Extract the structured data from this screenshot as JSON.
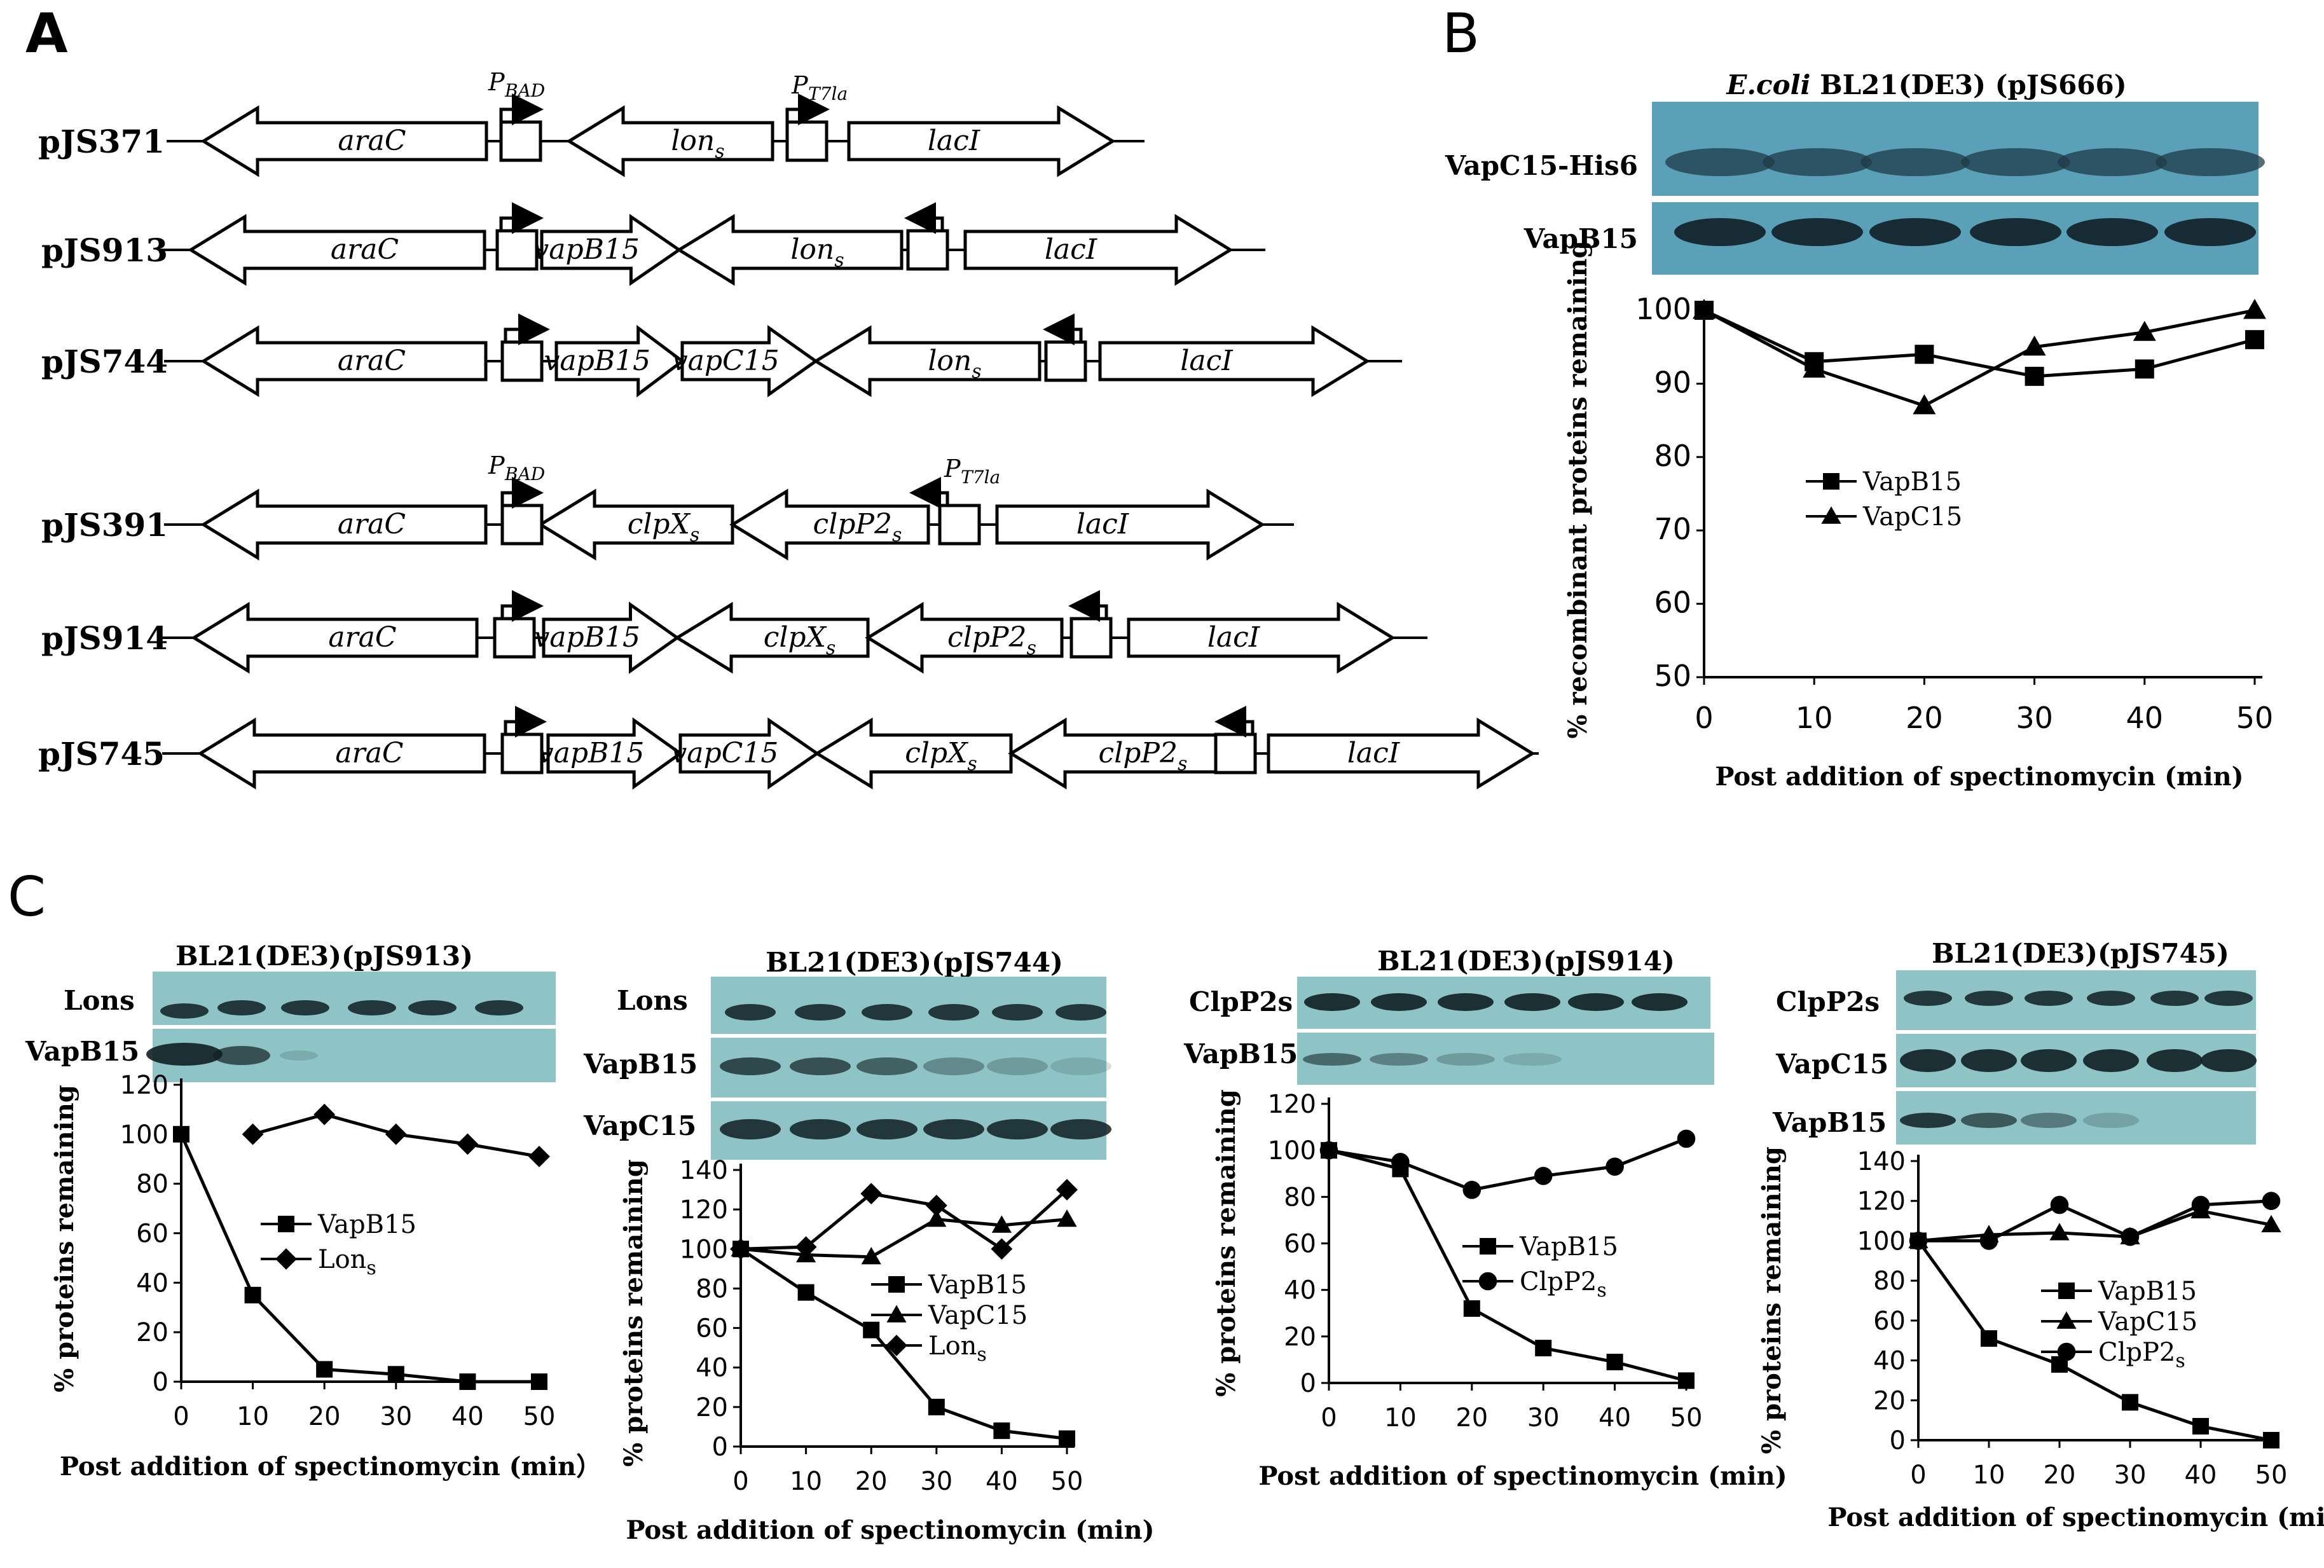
{
  "panels": {
    "a": {
      "label": "A",
      "promoter_pbad": "P",
      "promoter_pbad_sub": "BAD",
      "promoter_pt7": "P",
      "promoter_pt7_sub": "T7la",
      "plasmids": [
        {
          "name": "pJS371",
          "genes": [
            "araC",
            "lon",
            "lacI"
          ]
        },
        {
          "name": "pJS913",
          "genes": [
            "araC",
            "vapB15",
            "lon",
            "lacI"
          ]
        },
        {
          "name": "pJS744",
          "genes": [
            "araC",
            "vapB15",
            "vapC15",
            "lon",
            "lacI"
          ]
        },
        {
          "name": "pJS391",
          "genes": [
            "araC",
            "clpX",
            "clpP2",
            "lacI"
          ]
        },
        {
          "name": "pJS914",
          "genes": [
            "araC",
            "vapB15",
            "clpX",
            "clpP2",
            "lacI"
          ]
        },
        {
          "name": "pJS745",
          "genes": [
            "araC",
            "vapB15",
            "vapC15",
            "clpX",
            "clpP2",
            "lacI"
          ]
        }
      ],
      "subscript_s": "s"
    },
    "b": {
      "label": "B",
      "blot_title_italic": "E.coli",
      "blot_title_rest": " BL21(DE3) (pJS666)",
      "bands": [
        "VapC15-His6",
        "VapB15"
      ]
    },
    "c": {
      "label": "C",
      "blots": [
        {
          "title": "BL21(DE3)(pJS913)",
          "bands": [
            "Lons",
            "VapB15"
          ]
        },
        {
          "title": "BL21(DE3)(pJS744)",
          "bands": [
            "Lons",
            "VapB15",
            "VapC15"
          ]
        },
        {
          "title": "BL21(DE3)(pJS914)",
          "bands": [
            "ClpP2s",
            "VapB15"
          ]
        },
        {
          "title": "BL21(DE3)(pJS745)",
          "bands": [
            "ClpP2s",
            "VapC15",
            "VapB15"
          ]
        }
      ]
    }
  },
  "chart_data": [
    {
      "id": "B",
      "type": "line",
      "x": [
        0,
        10,
        20,
        30,
        40,
        50
      ],
      "series": [
        {
          "name": "VapB15",
          "marker": "square",
          "values": [
            100,
            93,
            94,
            91,
            92,
            96
          ]
        },
        {
          "name": "VapC15",
          "marker": "triangle",
          "values": [
            100,
            92,
            87,
            95,
            97,
            100
          ]
        }
      ],
      "ylim": [
        50,
        100
      ],
      "yticks": [
        50,
        60,
        70,
        80,
        90,
        100
      ],
      "xlabel": "Post addition of spectinomycin (min)",
      "ylabel": "% recombinant proteins remaining"
    },
    {
      "id": "C1",
      "type": "line",
      "x": [
        0,
        10,
        20,
        30,
        40,
        50
      ],
      "series": [
        {
          "name": "VapB15",
          "marker": "square",
          "values": [
            100,
            35,
            5,
            3,
            0,
            0
          ]
        },
        {
          "name": "Lon",
          "name_sub": "s",
          "marker": "diamond",
          "x": [
            10,
            20,
            30,
            40,
            50
          ],
          "values": [
            100,
            108,
            100,
            96,
            91
          ]
        }
      ],
      "ylim": [
        0,
        120
      ],
      "yticks": [
        0,
        20,
        40,
        60,
        80,
        100,
        120
      ],
      "xlabel": "Post addition of spectinomycin  (min）",
      "ylabel": "% proteins remaining"
    },
    {
      "id": "C2",
      "type": "line",
      "x": [
        0,
        10,
        20,
        30,
        40,
        50
      ],
      "series": [
        {
          "name": "VapB15",
          "marker": "square",
          "values": [
            100,
            78,
            59,
            20,
            8,
            4
          ]
        },
        {
          "name": "VapC15",
          "marker": "triangle",
          "values": [
            100,
            97,
            96,
            115,
            112,
            115
          ]
        },
        {
          "name": "Lon",
          "name_sub": "s",
          "marker": "diamond",
          "values": [
            100,
            101,
            128,
            122,
            100,
            130
          ]
        }
      ],
      "ylim": [
        0,
        140
      ],
      "yticks": [
        0,
        20,
        40,
        60,
        80,
        100,
        120,
        140
      ],
      "xlabel": "Post addition of  spectinomycin (min)",
      "ylabel": "%  proteins remaining"
    },
    {
      "id": "C3",
      "type": "line",
      "x": [
        0,
        10,
        20,
        30,
        40,
        50
      ],
      "series": [
        {
          "name": "VapB15",
          "marker": "square",
          "values": [
            100,
            92,
            32,
            15,
            9,
            1
          ]
        },
        {
          "name": "ClpP2",
          "name_sub": "s",
          "marker": "circle",
          "values": [
            100,
            95,
            83,
            89,
            93,
            105
          ]
        }
      ],
      "ylim": [
        0,
        120
      ],
      "yticks": [
        0,
        20,
        40,
        60,
        80,
        100,
        120
      ],
      "xlabel": "Post addition of spectinomycin   (min)",
      "ylabel": "%  proteins remaining"
    },
    {
      "id": "C4",
      "type": "line",
      "x": [
        0,
        10,
        20,
        30,
        40,
        50
      ],
      "series": [
        {
          "name": "VapB15",
          "marker": "square",
          "values": [
            100,
            51,
            38,
            19,
            7,
            0
          ]
        },
        {
          "name": "VapC15",
          "marker": "triangle",
          "values": [
            100,
            103,
            104,
            102,
            115,
            108
          ]
        },
        {
          "name": "ClpP2",
          "name_sub": "s",
          "marker": "circle",
          "values": [
            100,
            100,
            118,
            102,
            118,
            120
          ]
        }
      ],
      "ylim": [
        0,
        140
      ],
      "yticks": [
        0,
        20,
        40,
        60,
        80,
        100,
        120,
        140
      ],
      "xlabel": "Post addition of spectinomycin   (min)",
      "ylabel": "% proteins remaining"
    }
  ]
}
